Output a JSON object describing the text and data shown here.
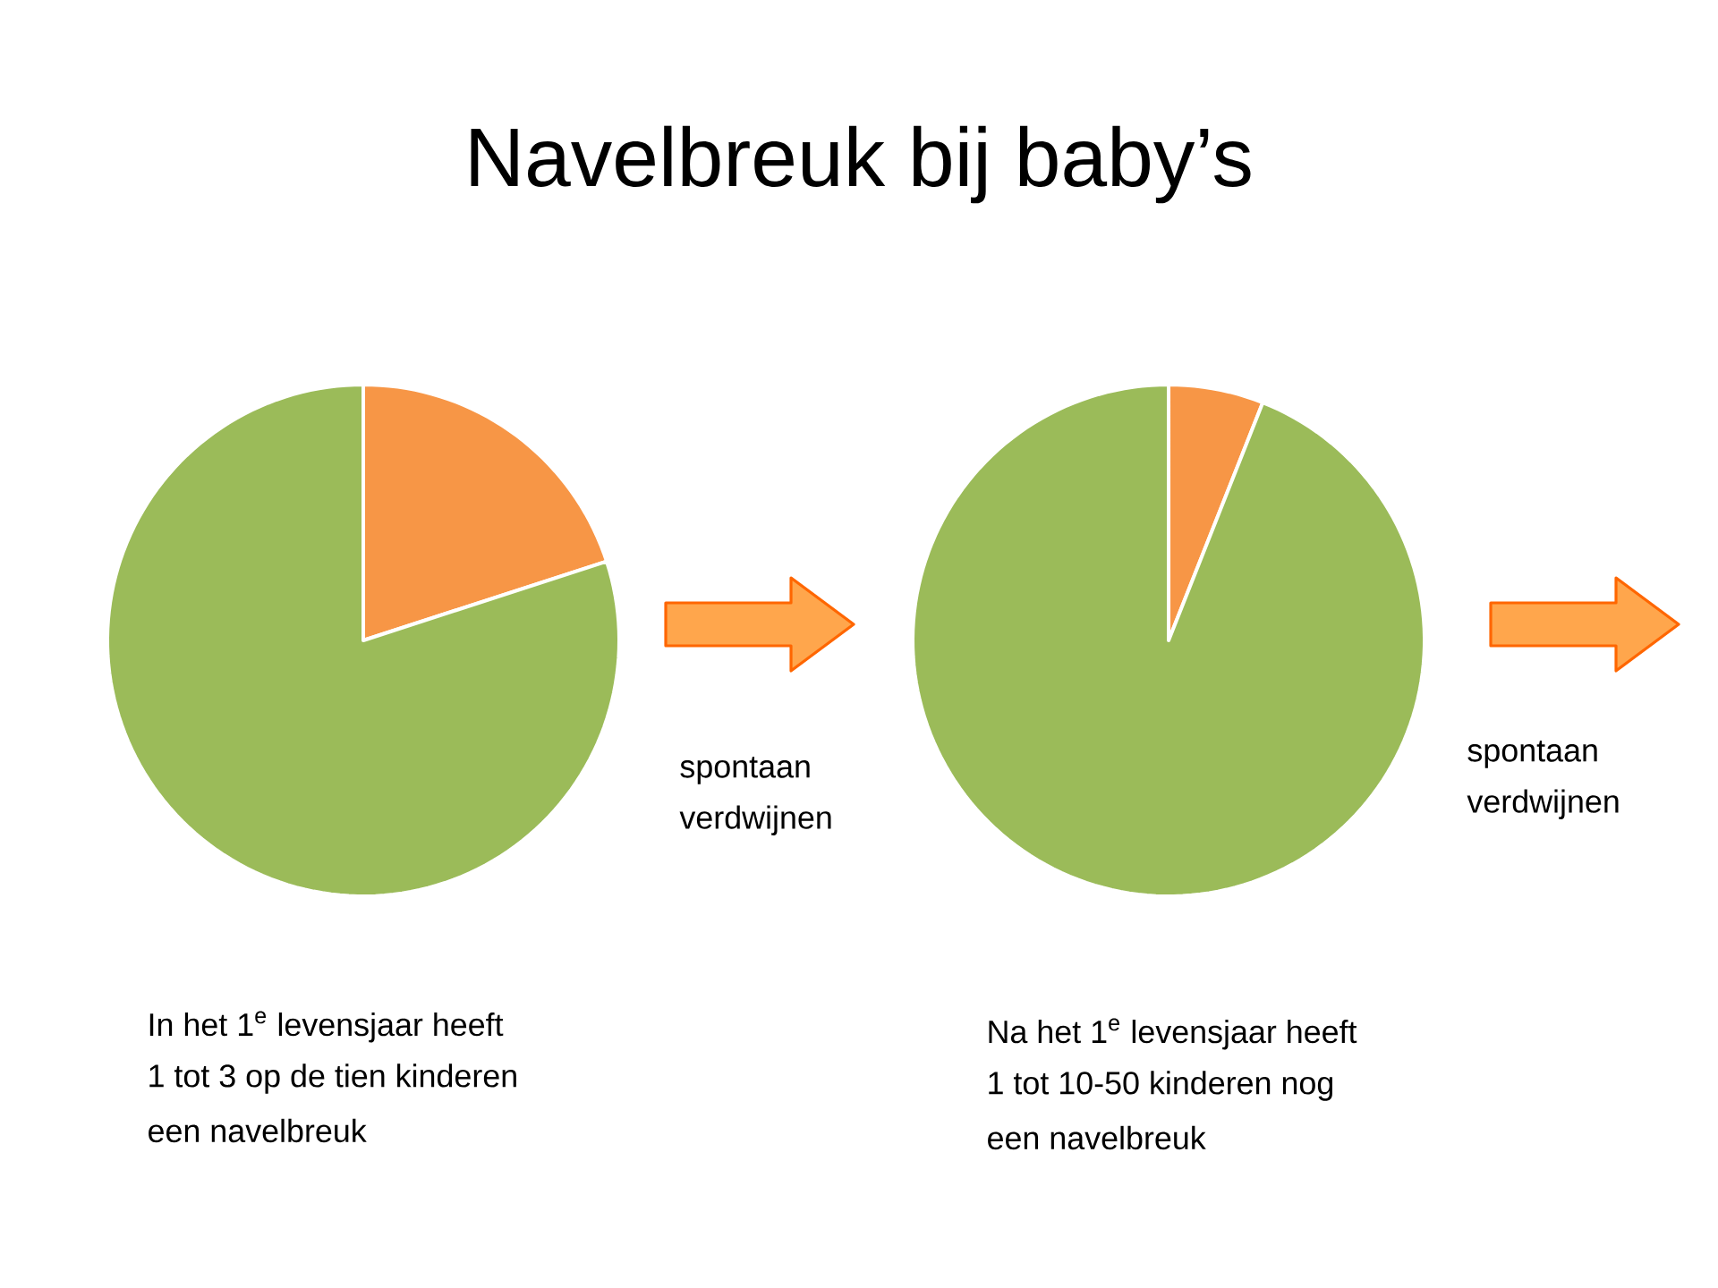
{
  "chart_data": [
    {
      "type": "pie",
      "title": "Navelbreuk bij baby’s",
      "categories": [
        null,
        null
      ],
      "values": [
        20,
        80
      ],
      "colors": [
        "#f79646",
        "#9bbb59"
      ],
      "annotations": [
        "spontaan verdwijnen",
        "In het 1$^{e}$ levensjaar heeft",
        "1 tot 3 op de tien kinderen",
        "een navelbreuk"
      ]
    },
    {
      "type": "pie",
      "categories": [
        null,
        null
      ],
      "values": [
        6,
        94
      ],
      "colors": [
        "#f79646",
        "#9bbb59"
      ],
      "annotations": [
        "spontaan verdwijnen",
        "Na het 1$^{e}$ levensjaar heeft",
        "1 tot 10-50 kinderen nog",
        "een navelbreuk"
      ]
    }
  ]
}
